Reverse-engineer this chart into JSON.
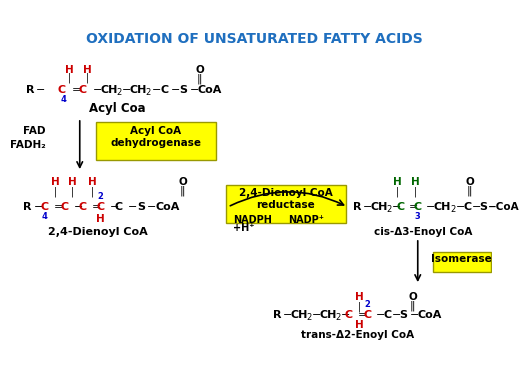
{
  "title": "OXIDATION OF UNSATURATED FATTY ACIDS",
  "title_color": "#1F6FBF",
  "bg_color": "#FFFFFF",
  "yellow": "#FFFF00",
  "yellow_edge": "#999900",
  "enzyme1": "Acyl CoA\ndehydrogenase",
  "enzyme2": "2,4-Dienoyl CoA\nreductase",
  "enzyme3": "Isomerase",
  "label1": "Acyl Coa",
  "label2": "2,4-Dienoyl CoA",
  "label3": "cis-Δ3-Enoyl CoA",
  "label4": "trans-Δ2-Enoyl CoA",
  "fad": "FAD",
  "fadh2": "FADH₂",
  "nadph": "NADPH",
  "nadph2": "+H⁺",
  "nadp": "NADP⁺",
  "red": "#CC0000",
  "green": "#006600",
  "blue": "#0000CC",
  "black": "#000000"
}
